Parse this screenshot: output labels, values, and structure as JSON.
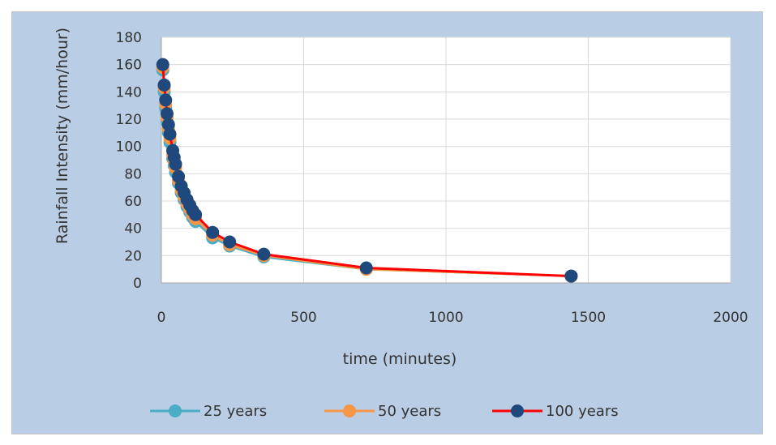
{
  "chart_data": {
    "type": "line",
    "xlabel": "time (minutes)",
    "ylabel": "Rainfall Intensity (mm/hour)",
    "xlim": [
      0,
      2000
    ],
    "ylim": [
      0,
      180
    ],
    "xticks": [
      "0",
      "500",
      "1000",
      "1500",
      "2000"
    ],
    "yticks": [
      "0",
      "20",
      "40",
      "60",
      "80",
      "100",
      "120",
      "140",
      "160",
      "180"
    ],
    "grid": true,
    "legend_position": "bottom",
    "x": [
      5,
      10,
      15,
      20,
      25,
      30,
      40,
      45,
      50,
      60,
      70,
      80,
      90,
      100,
      110,
      120,
      180,
      240,
      360,
      720,
      1440
    ],
    "series": [
      {
        "name": "25 years",
        "color": "#4bacc6",
        "values": [
          156,
          140,
          128,
          118,
          110,
          103,
          91,
          86,
          81,
          73,
          66,
          61,
          56,
          52,
          48,
          45,
          33,
          27,
          19,
          10,
          5
        ]
      },
      {
        "name": "50 years",
        "color": "#f79646",
        "values": [
          158,
          143,
          131,
          121,
          113,
          106,
          94,
          89,
          84,
          75,
          68,
          63,
          58,
          54,
          50,
          47,
          35,
          28,
          20,
          10,
          5
        ]
      },
      {
        "name": "100 years",
        "color": "#ff0000",
        "marker_color": "#1f497d",
        "values": [
          160,
          145,
          134,
          124,
          116,
          109,
          97,
          92,
          87,
          78,
          71,
          66,
          61,
          57,
          53,
          50,
          37,
          30,
          21,
          11,
          5
        ]
      }
    ]
  }
}
